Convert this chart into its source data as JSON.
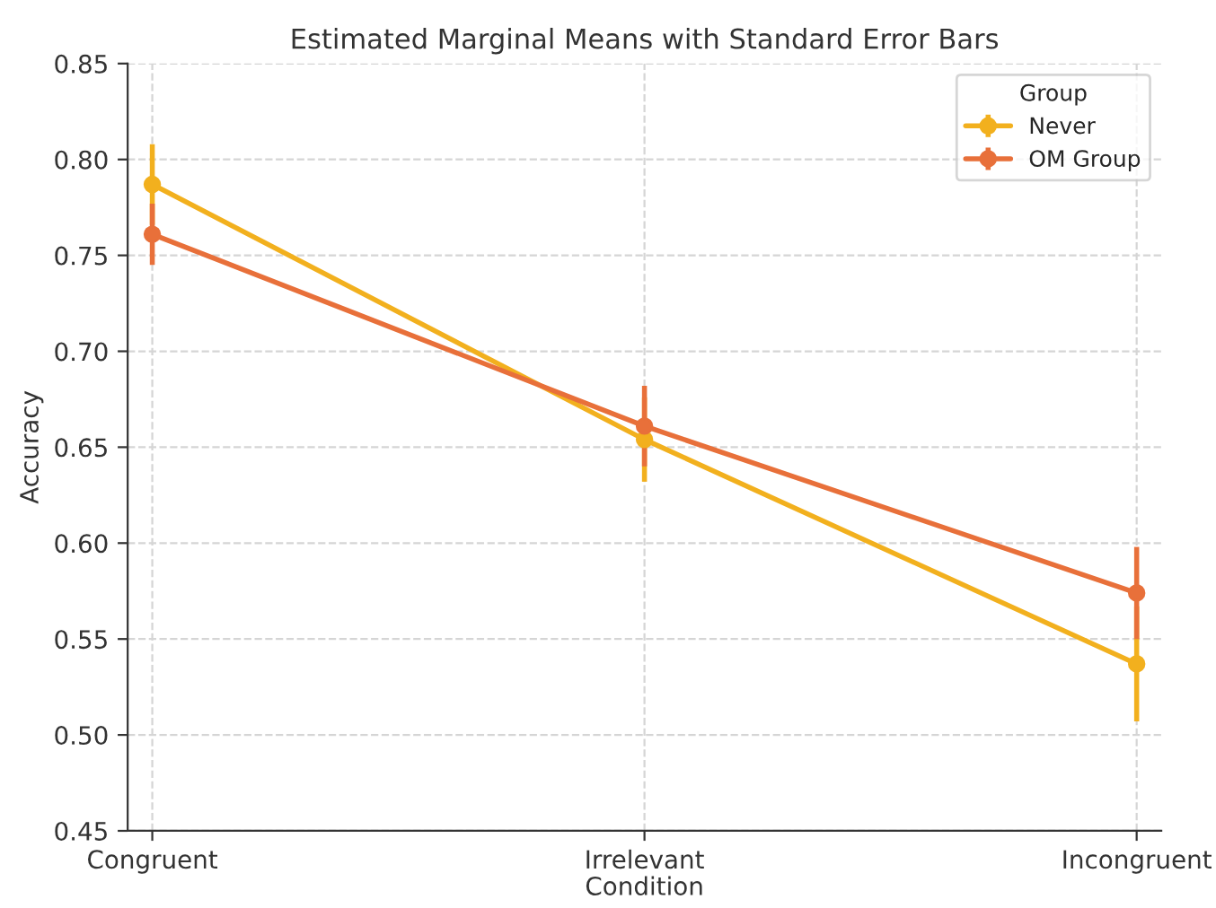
{
  "chart_data": {
    "type": "line",
    "title": "Estimated Marginal Means with Standard Error Bars",
    "xlabel": "Condition",
    "ylabel": "Accuracy",
    "legend_title": "Group",
    "categories": [
      "Congruent",
      "Irrelevant",
      "Incongruent"
    ],
    "series": [
      {
        "name": "Never",
        "color": "#f2b01e",
        "values": [
          0.787,
          0.654,
          0.537
        ],
        "errors": [
          0.021,
          0.022,
          0.03
        ]
      },
      {
        "name": "OM Group",
        "color": "#e8703a",
        "values": [
          0.761,
          0.661,
          0.574
        ],
        "errors": [
          0.016,
          0.021,
          0.024
        ]
      }
    ],
    "ylim": [
      0.45,
      0.85
    ],
    "yticks": [
      {
        "value": 0.45,
        "label": "0.45"
      },
      {
        "value": 0.5,
        "label": "0.50"
      },
      {
        "value": 0.55,
        "label": "0.55"
      },
      {
        "value": 0.6,
        "label": "0.60"
      },
      {
        "value": 0.65,
        "label": "0.65"
      },
      {
        "value": 0.7,
        "label": "0.70"
      },
      {
        "value": 0.75,
        "label": "0.75"
      },
      {
        "value": 0.8,
        "label": "0.80"
      },
      {
        "value": 0.85,
        "label": "0.85"
      }
    ],
    "grid": true,
    "legend": "top right",
    "marker": "circle",
    "line_style": "solid"
  }
}
